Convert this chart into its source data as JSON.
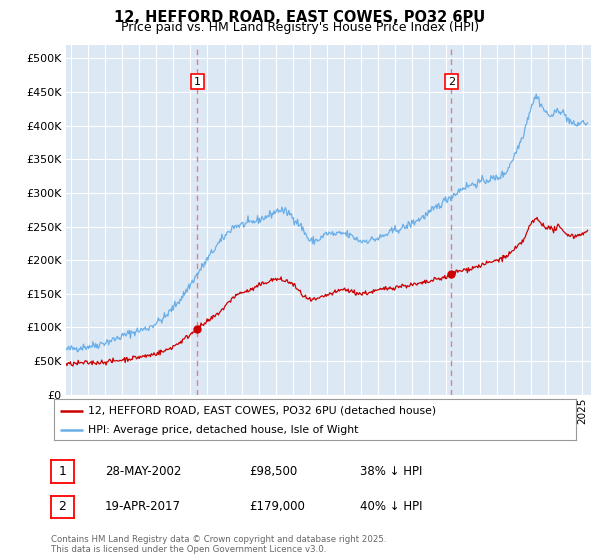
{
  "title": "12, HEFFORD ROAD, EAST COWES, PO32 6PU",
  "subtitle": "Price paid vs. HM Land Registry's House Price Index (HPI)",
  "background_color": "#dce9f5",
  "hpi_color": "#6aaee8",
  "price_color": "#cc0000",
  "dashed_color": "#e08080",
  "ylim": [
    0,
    520000
  ],
  "yticks": [
    0,
    50000,
    100000,
    150000,
    200000,
    250000,
    300000,
    350000,
    400000,
    450000,
    500000
  ],
  "xlim_start": 1994.7,
  "xlim_end": 2025.5,
  "sale1_x": 2002.41,
  "sale1_y": 98500,
  "sale1_label": "1",
  "sale1_date": "28-MAY-2002",
  "sale1_price": "£98,500",
  "sale1_hpi": "38% ↓ HPI",
  "sale2_x": 2017.3,
  "sale2_y": 179000,
  "sale2_label": "2",
  "sale2_date": "19-APR-2017",
  "sale2_price": "£179,000",
  "sale2_hpi": "40% ↓ HPI",
  "legend_line1": "12, HEFFORD ROAD, EAST COWES, PO32 6PU (detached house)",
  "legend_line2": "HPI: Average price, detached house, Isle of Wight",
  "footer1": "Contains HM Land Registry data © Crown copyright and database right 2025.",
  "footer2": "This data is licensed under the Open Government Licence v3.0.",
  "hpi_anchors": [
    [
      1994.7,
      67000
    ],
    [
      1995.5,
      70000
    ],
    [
      1996.5,
      74000
    ],
    [
      1997.5,
      82000
    ],
    [
      1998.5,
      92000
    ],
    [
      1999.5,
      99000
    ],
    [
      2000.5,
      115000
    ],
    [
      2001.5,
      145000
    ],
    [
      2002.5,
      183000
    ],
    [
      2003.5,
      220000
    ],
    [
      2004.5,
      250000
    ],
    [
      2005.5,
      255000
    ],
    [
      2006.5,
      265000
    ],
    [
      2007.2,
      275000
    ],
    [
      2007.8,
      270000
    ],
    [
      2008.5,
      250000
    ],
    [
      2009.0,
      228000
    ],
    [
      2009.5,
      230000
    ],
    [
      2010.0,
      240000
    ],
    [
      2010.5,
      238000
    ],
    [
      2011.0,
      240000
    ],
    [
      2011.5,
      235000
    ],
    [
      2012.0,
      228000
    ],
    [
      2012.5,
      230000
    ],
    [
      2013.0,
      232000
    ],
    [
      2013.5,
      238000
    ],
    [
      2014.0,
      245000
    ],
    [
      2014.5,
      248000
    ],
    [
      2015.0,
      255000
    ],
    [
      2015.5,
      262000
    ],
    [
      2016.0,
      270000
    ],
    [
      2016.5,
      280000
    ],
    [
      2017.0,
      290000
    ],
    [
      2017.5,
      298000
    ],
    [
      2018.0,
      308000
    ],
    [
      2018.5,
      312000
    ],
    [
      2019.0,
      316000
    ],
    [
      2019.5,
      320000
    ],
    [
      2020.0,
      322000
    ],
    [
      2020.5,
      330000
    ],
    [
      2021.0,
      355000
    ],
    [
      2021.5,
      385000
    ],
    [
      2022.0,
      430000
    ],
    [
      2022.3,
      445000
    ],
    [
      2022.7,
      425000
    ],
    [
      2023.0,
      415000
    ],
    [
      2023.3,
      415000
    ],
    [
      2023.6,
      425000
    ],
    [
      2023.9,
      418000
    ],
    [
      2024.2,
      408000
    ],
    [
      2024.5,
      400000
    ],
    [
      2025.0,
      405000
    ],
    [
      2025.3,
      403000
    ]
  ],
  "price_anchors": [
    [
      1994.7,
      45000
    ],
    [
      1995.5,
      47000
    ],
    [
      1996.5,
      48000
    ],
    [
      1997.5,
      50000
    ],
    [
      1998.5,
      54000
    ],
    [
      1999.5,
      58000
    ],
    [
      2000.5,
      65000
    ],
    [
      2001.0,
      72000
    ],
    [
      2001.5,
      80000
    ],
    [
      2002.0,
      90000
    ],
    [
      2002.41,
      98500
    ],
    [
      2002.8,
      105000
    ],
    [
      2003.5,
      118000
    ],
    [
      2004.0,
      130000
    ],
    [
      2004.5,
      145000
    ],
    [
      2005.0,
      152000
    ],
    [
      2005.5,
      155000
    ],
    [
      2006.0,
      162000
    ],
    [
      2006.5,
      168000
    ],
    [
      2007.0,
      172000
    ],
    [
      2007.5,
      170000
    ],
    [
      2008.0,
      165000
    ],
    [
      2008.5,
      150000
    ],
    [
      2009.0,
      140000
    ],
    [
      2009.5,
      142000
    ],
    [
      2010.0,
      148000
    ],
    [
      2010.5,
      152000
    ],
    [
      2011.0,
      157000
    ],
    [
      2011.5,
      153000
    ],
    [
      2012.0,
      150000
    ],
    [
      2012.5,
      152000
    ],
    [
      2013.0,
      155000
    ],
    [
      2013.5,
      158000
    ],
    [
      2014.0,
      160000
    ],
    [
      2014.5,
      162000
    ],
    [
      2015.0,
      163000
    ],
    [
      2015.5,
      165000
    ],
    [
      2016.0,
      168000
    ],
    [
      2016.5,
      172000
    ],
    [
      2017.0,
      175000
    ],
    [
      2017.3,
      179000
    ],
    [
      2017.5,
      182000
    ],
    [
      2018.0,
      185000
    ],
    [
      2018.5,
      188000
    ],
    [
      2019.0,
      192000
    ],
    [
      2019.5,
      196000
    ],
    [
      2020.0,
      200000
    ],
    [
      2020.5,
      205000
    ],
    [
      2021.0,
      215000
    ],
    [
      2021.5,
      228000
    ],
    [
      2022.0,
      255000
    ],
    [
      2022.3,
      262000
    ],
    [
      2022.7,
      252000
    ],
    [
      2023.0,
      248000
    ],
    [
      2023.3,
      245000
    ],
    [
      2023.6,
      250000
    ],
    [
      2023.9,
      242000
    ],
    [
      2024.2,
      238000
    ],
    [
      2024.5,
      235000
    ],
    [
      2025.0,
      240000
    ],
    [
      2025.3,
      242000
    ]
  ]
}
